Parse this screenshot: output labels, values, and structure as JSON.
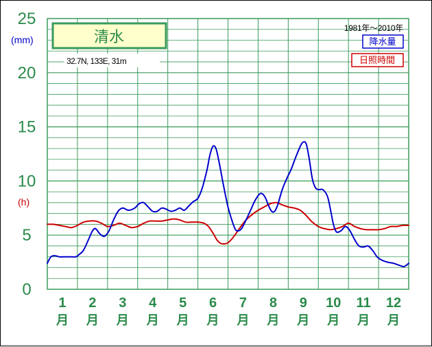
{
  "chart_data": {
    "type": "line",
    "title": "清水",
    "location": "32.7N,  133E,  31m",
    "period": "1981年〜2010年",
    "y_unit_left": "(mm)",
    "y_unit_hours": "(h)",
    "ylim": [
      0,
      25
    ],
    "yticks": [
      "0",
      "5",
      "10",
      "15",
      "20",
      "25"
    ],
    "month_numbers": [
      "1",
      "2",
      "3",
      "4",
      "5",
      "6",
      "7",
      "8",
      "9",
      "10",
      "11",
      "12"
    ],
    "month_suffix": "月",
    "x_range": [
      0.5,
      12.5
    ],
    "grid": true,
    "legend_position": "top-right",
    "series": [
      {
        "name": "降水量",
        "color": "#0000cc",
        "x": [
          0.5,
          0.62,
          0.75,
          0.9,
          1.1,
          1.3,
          1.45,
          1.55,
          1.7,
          1.9,
          2.0,
          2.1,
          2.25,
          2.4,
          2.55,
          2.7,
          2.85,
          3.0,
          3.2,
          3.4,
          3.55,
          3.7,
          3.85,
          4.0,
          4.15,
          4.3,
          4.45,
          4.6,
          4.75,
          4.9,
          5.05,
          5.2,
          5.35,
          5.5,
          5.65,
          5.8,
          5.9,
          6.0,
          6.1,
          6.2,
          6.35,
          6.5,
          6.65,
          6.75,
          6.85,
          6.95,
          7.1,
          7.25,
          7.4,
          7.55,
          7.65,
          7.75,
          7.85,
          7.95,
          8.05,
          8.15,
          8.3,
          8.45,
          8.6,
          8.75,
          8.9,
          9.0,
          9.1,
          9.2,
          9.3,
          9.4,
          9.5,
          9.65,
          9.8,
          9.9,
          10.0,
          10.1,
          10.25,
          10.4,
          10.55,
          10.7,
          10.85,
          11.0,
          11.15,
          11.3,
          11.45,
          11.6,
          11.8,
          12.0,
          12.2,
          12.35,
          12.5
        ],
        "values": [
          2.4,
          3.0,
          3.1,
          3.0,
          3.0,
          3.0,
          3.0,
          3.2,
          3.6,
          4.8,
          5.4,
          5.6,
          5.1,
          4.9,
          5.4,
          6.4,
          7.2,
          7.5,
          7.3,
          7.5,
          7.9,
          8.0,
          7.6,
          7.2,
          7.2,
          7.5,
          7.4,
          7.2,
          7.3,
          7.5,
          7.3,
          7.7,
          8.1,
          8.4,
          9.4,
          11.0,
          12.4,
          13.2,
          13.0,
          11.8,
          9.6,
          7.6,
          6.2,
          5.5,
          5.4,
          5.6,
          6.4,
          7.3,
          8.2,
          8.8,
          8.8,
          8.4,
          7.7,
          7.2,
          7.2,
          7.8,
          9.2,
          10.2,
          11.1,
          12.2,
          13.2,
          13.6,
          13.4,
          12.0,
          10.2,
          9.4,
          9.2,
          9.2,
          8.6,
          7.4,
          6.0,
          5.3,
          5.4,
          5.8,
          5.4,
          4.6,
          4.0,
          3.9,
          4.0,
          3.6,
          3.0,
          2.7,
          2.5,
          2.4,
          2.2,
          2.1,
          2.4
        ]
      },
      {
        "name": "日照時間",
        "color": "#cc0000",
        "x": [
          0.5,
          0.7,
          0.9,
          1.1,
          1.3,
          1.5,
          1.7,
          1.9,
          2.1,
          2.3,
          2.5,
          2.7,
          2.9,
          3.1,
          3.3,
          3.5,
          3.7,
          3.9,
          4.1,
          4.3,
          4.5,
          4.7,
          4.9,
          5.1,
          5.3,
          5.5,
          5.7,
          5.85,
          6.0,
          6.15,
          6.3,
          6.5,
          6.7,
          6.9,
          7.1,
          7.3,
          7.5,
          7.7,
          7.9,
          8.1,
          8.3,
          8.5,
          8.7,
          8.9,
          9.1,
          9.3,
          9.5,
          9.7,
          9.9,
          10.1,
          10.3,
          10.5,
          10.7,
          10.9,
          11.1,
          11.3,
          11.5,
          11.7,
          11.9,
          12.1,
          12.3,
          12.5
        ],
        "values": [
          6.0,
          6.0,
          5.9,
          5.8,
          5.7,
          5.9,
          6.2,
          6.3,
          6.3,
          6.1,
          5.8,
          5.9,
          6.1,
          5.9,
          5.7,
          5.8,
          6.1,
          6.3,
          6.3,
          6.3,
          6.4,
          6.5,
          6.4,
          6.2,
          6.2,
          6.2,
          6.1,
          5.8,
          5.2,
          4.5,
          4.2,
          4.3,
          4.9,
          5.7,
          6.4,
          6.9,
          7.3,
          7.6,
          7.9,
          8.0,
          7.8,
          7.6,
          7.5,
          7.3,
          6.8,
          6.2,
          5.8,
          5.6,
          5.5,
          5.6,
          5.8,
          6.1,
          5.8,
          5.6,
          5.5,
          5.5,
          5.5,
          5.6,
          5.8,
          5.8,
          5.9,
          5.9
        ]
      }
    ]
  }
}
